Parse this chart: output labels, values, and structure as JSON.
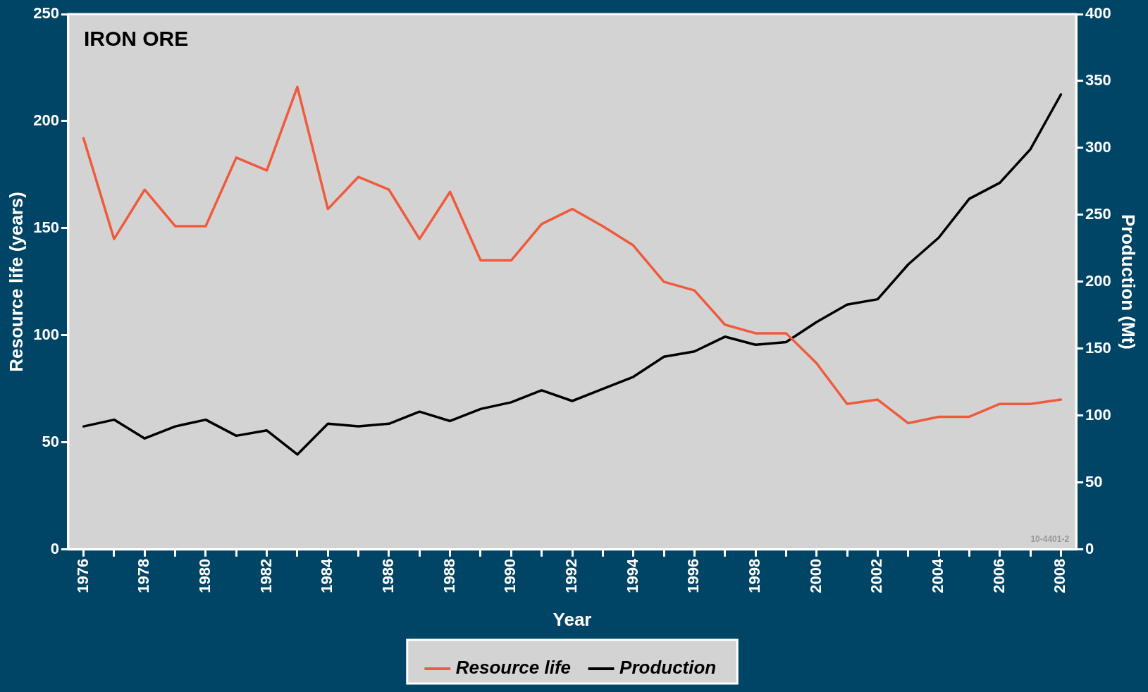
{
  "chart_data": {
    "type": "line",
    "title": "IRON ORE",
    "xlabel": "Year",
    "ylabel": "Resource life (years)",
    "y2label": "Production (Mt)",
    "x": [
      1976,
      1977,
      1978,
      1979,
      1980,
      1981,
      1982,
      1983,
      1984,
      1985,
      1986,
      1987,
      1988,
      1989,
      1990,
      1991,
      1992,
      1993,
      1994,
      1995,
      1996,
      1997,
      1998,
      1999,
      2000,
      2001,
      2002,
      2003,
      2004,
      2005,
      2006,
      2007,
      2008
    ],
    "series": [
      {
        "name": "Resource life",
        "color": "#f05a3c",
        "values": [
          192,
          145,
          168,
          151,
          151,
          183,
          177,
          216,
          159,
          174,
          168,
          145,
          167,
          135,
          135,
          152,
          159,
          151,
          142,
          125,
          121,
          105,
          101,
          101,
          87,
          68,
          70,
          59,
          62,
          62,
          68,
          68,
          70
        ]
      },
      {
        "name": "Production",
        "color": "#000000",
        "axis": "y2",
        "values": [
          92,
          97,
          83,
          92,
          97,
          85,
          89,
          71,
          94,
          92,
          94,
          103,
          96,
          105,
          110,
          119,
          111,
          120,
          129,
          144,
          148,
          159,
          153,
          155,
          170,
          183,
          187,
          213,
          233,
          262,
          274,
          299,
          340
        ]
      }
    ],
    "xlim": [
      1975.5,
      2008.5
    ],
    "xticks": [
      1976,
      {
        "value": 1977,
        "label": null
      },
      1978,
      {
        "value": 1979,
        "label": null
      },
      1980,
      {
        "value": 1981,
        "label": null
      },
      1982,
      {
        "value": 1983,
        "label": null
      },
      1984,
      {
        "value": 1985,
        "label": null
      },
      1986,
      {
        "value": 1987,
        "label": null
      },
      1988,
      {
        "value": 1989,
        "label": null
      },
      1990,
      {
        "value": 1991,
        "label": null
      },
      1992,
      {
        "value": 1993,
        "label": null
      },
      1994,
      {
        "value": 1995,
        "label": null
      },
      1996,
      {
        "value": 1997,
        "label": null
      },
      1998,
      {
        "value": 1999,
        "label": null
      },
      2000,
      {
        "value": 2001,
        "label": null
      },
      2002,
      {
        "value": 2003,
        "label": null
      },
      2004,
      {
        "value": 2005,
        "label": null
      },
      2006,
      {
        "value": 2007,
        "label": null
      },
      2008
    ],
    "ylim": [
      0,
      250
    ],
    "yticks": [
      0,
      50,
      100,
      150,
      200,
      250
    ],
    "y2lim": [
      0,
      400
    ],
    "y2ticks": [
      0,
      50,
      100,
      150,
      200,
      250,
      300,
      350,
      400
    ],
    "annotations": [
      "10-4401-2"
    ],
    "grid": false,
    "legend": "bottom",
    "marker": "none",
    "line_style": "solid"
  }
}
